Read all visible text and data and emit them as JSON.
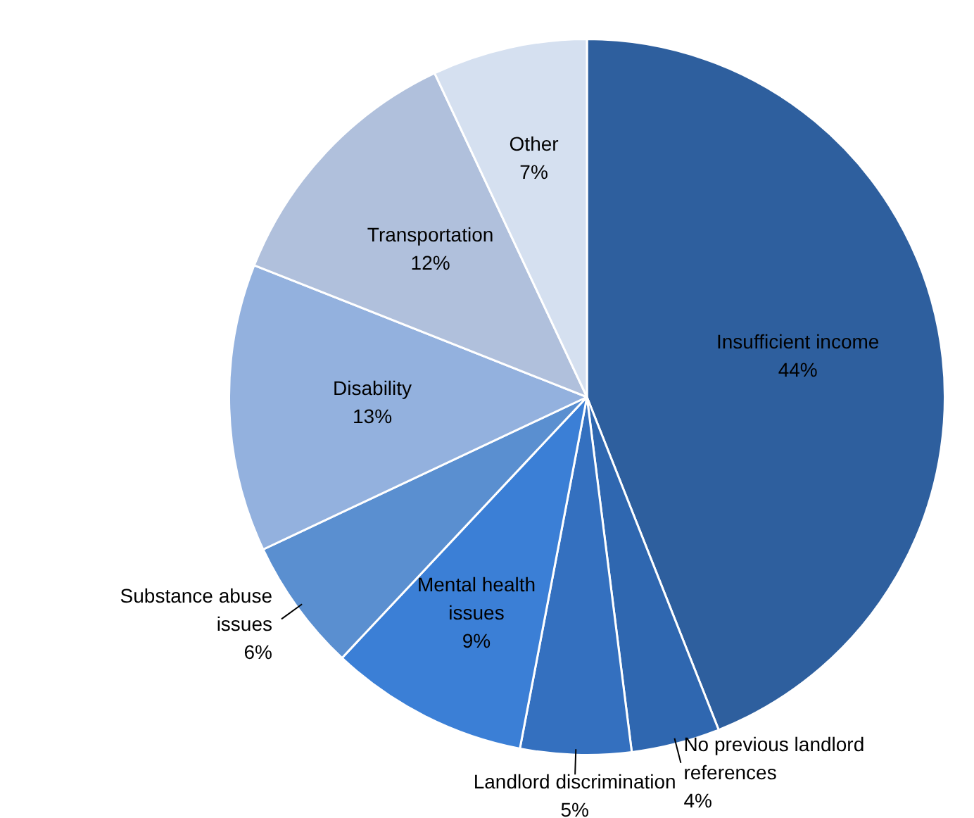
{
  "chart_data": {
    "type": "pie",
    "categories": [
      "Insufficient income",
      "No previous landlord references",
      "Landlord discrimination",
      "Mental health issues",
      "Substance abuse issues",
      "Disability",
      "Transportation",
      "Other"
    ],
    "values": [
      44,
      4,
      5,
      9,
      6,
      13,
      12,
      7
    ],
    "colors": [
      "#2e5f9e",
      "#2f67b0",
      "#3470bf",
      "#3b7fd6",
      "#5a8fd0",
      "#93b1de",
      "#b0c0dc",
      "#d5e0f0"
    ],
    "value_labels": [
      "44%",
      "4%",
      "5%",
      "9%",
      "6%",
      "13%",
      "12%",
      "7%"
    ],
    "legend": false
  }
}
